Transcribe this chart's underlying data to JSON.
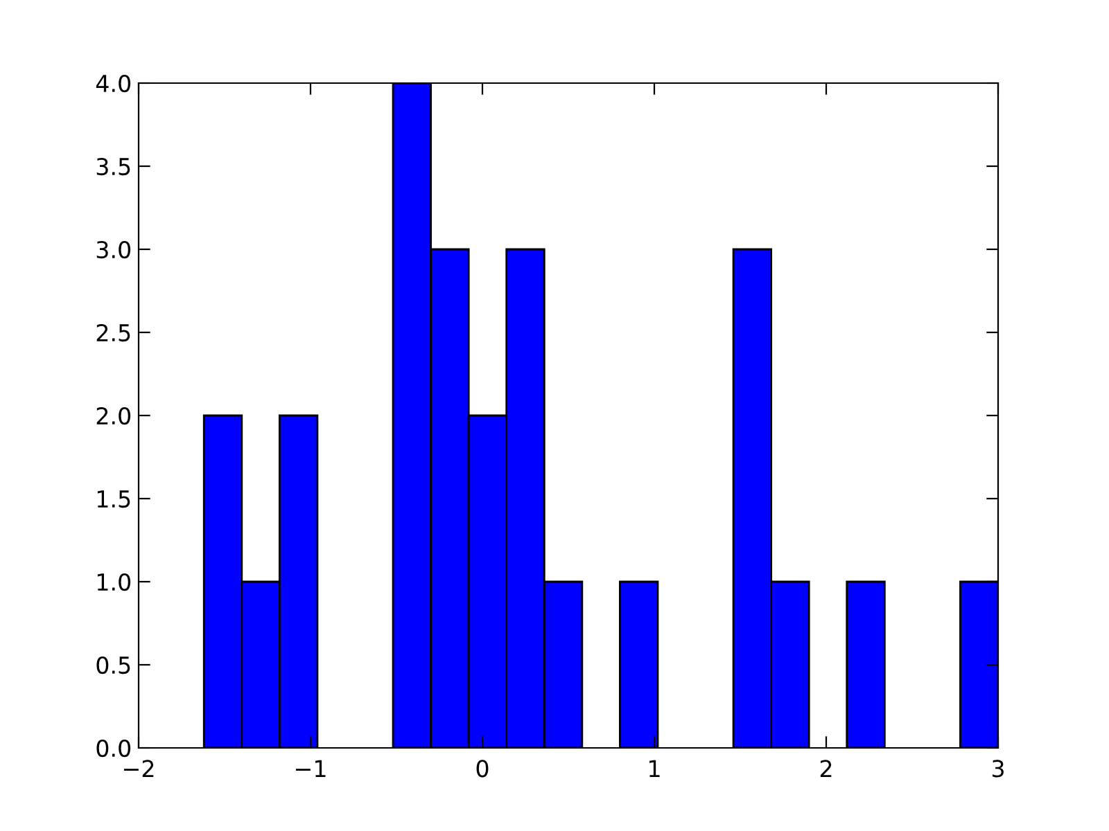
{
  "chart_data": {
    "type": "histogram",
    "bins": [
      -1.62,
      -1.4,
      -1.18,
      -0.96,
      -0.74,
      -0.52,
      -0.3,
      -0.08,
      0.14,
      0.36,
      0.58,
      0.8,
      1.02,
      1.24,
      1.46,
      1.68,
      1.9,
      2.12,
      2.34,
      2.56,
      2.78,
      3.0
    ],
    "values": [
      2,
      1,
      2,
      0,
      0,
      4,
      3,
      2,
      3,
      1,
      0,
      1,
      0,
      0,
      3,
      1,
      0,
      1,
      0,
      0,
      1
    ],
    "color": "#0000ff",
    "xlim": [
      -2,
      3
    ],
    "xticks": [
      {
        "value": -2,
        "label": "−2"
      },
      {
        "value": -1,
        "label": "−1"
      },
      0,
      1,
      2,
      3
    ],
    "ylim": [
      0,
      4
    ],
    "yticks": [
      {
        "value": 0,
        "label": "0.0"
      },
      {
        "value": 0.5,
        "label": "0.5"
      },
      {
        "value": 1,
        "label": "1.0"
      },
      {
        "value": 1.5,
        "label": "1.5"
      },
      {
        "value": 2,
        "label": "2.0"
      },
      {
        "value": 2.5,
        "label": "2.5"
      },
      {
        "value": 3,
        "label": "3.0"
      },
      {
        "value": 3.5,
        "label": "3.5"
      },
      {
        "value": 4,
        "label": "4.0"
      }
    ],
    "grid": false,
    "legend": false
  }
}
